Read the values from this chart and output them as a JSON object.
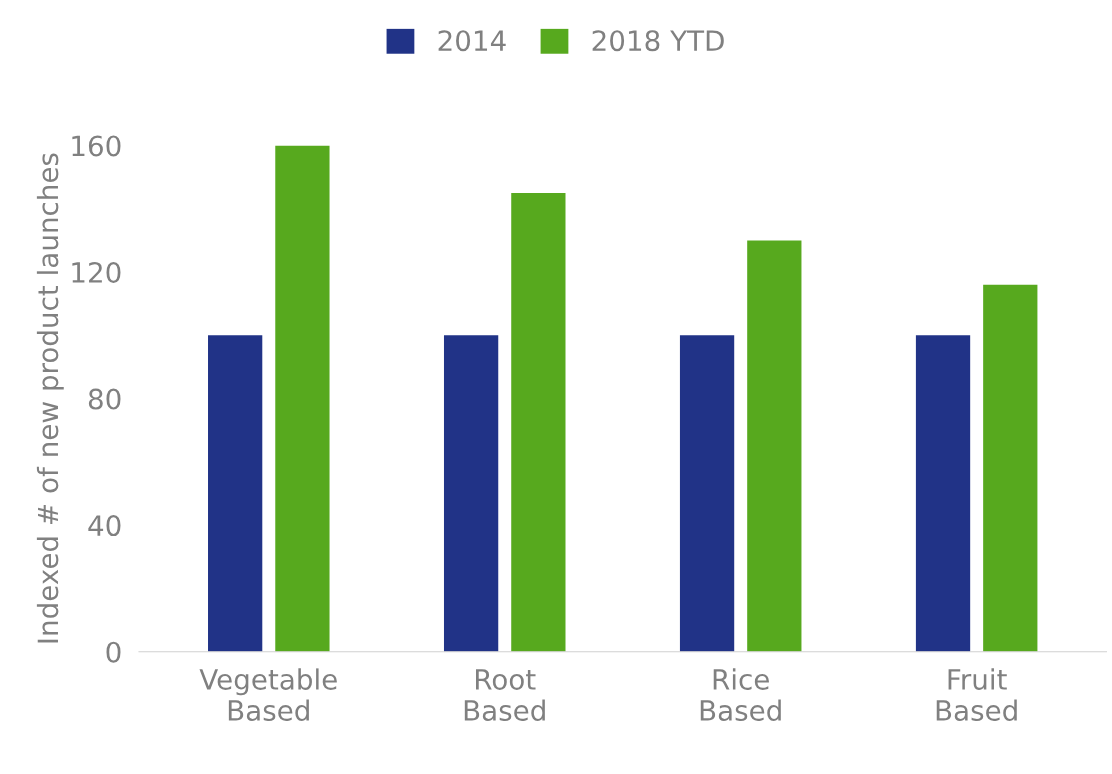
{
  "chart_data": {
    "type": "bar",
    "ylabel": "Indexed # of new product launches",
    "categories": [
      "Vegetable\nBased",
      "Root\nBased",
      "Rice\nBased",
      "Fruit\nBased"
    ],
    "series": [
      {
        "name": "2014",
        "color": "#213387",
        "values": [
          100,
          100,
          100,
          100
        ]
      },
      {
        "name": "2018 YTD",
        "color": "#57a91e",
        "values": [
          160,
          145,
          130,
          116
        ]
      }
    ],
    "ylim": [
      0,
      160
    ],
    "yticks": [
      0,
      40,
      80,
      120,
      160
    ],
    "grid": false,
    "legend": "top"
  }
}
